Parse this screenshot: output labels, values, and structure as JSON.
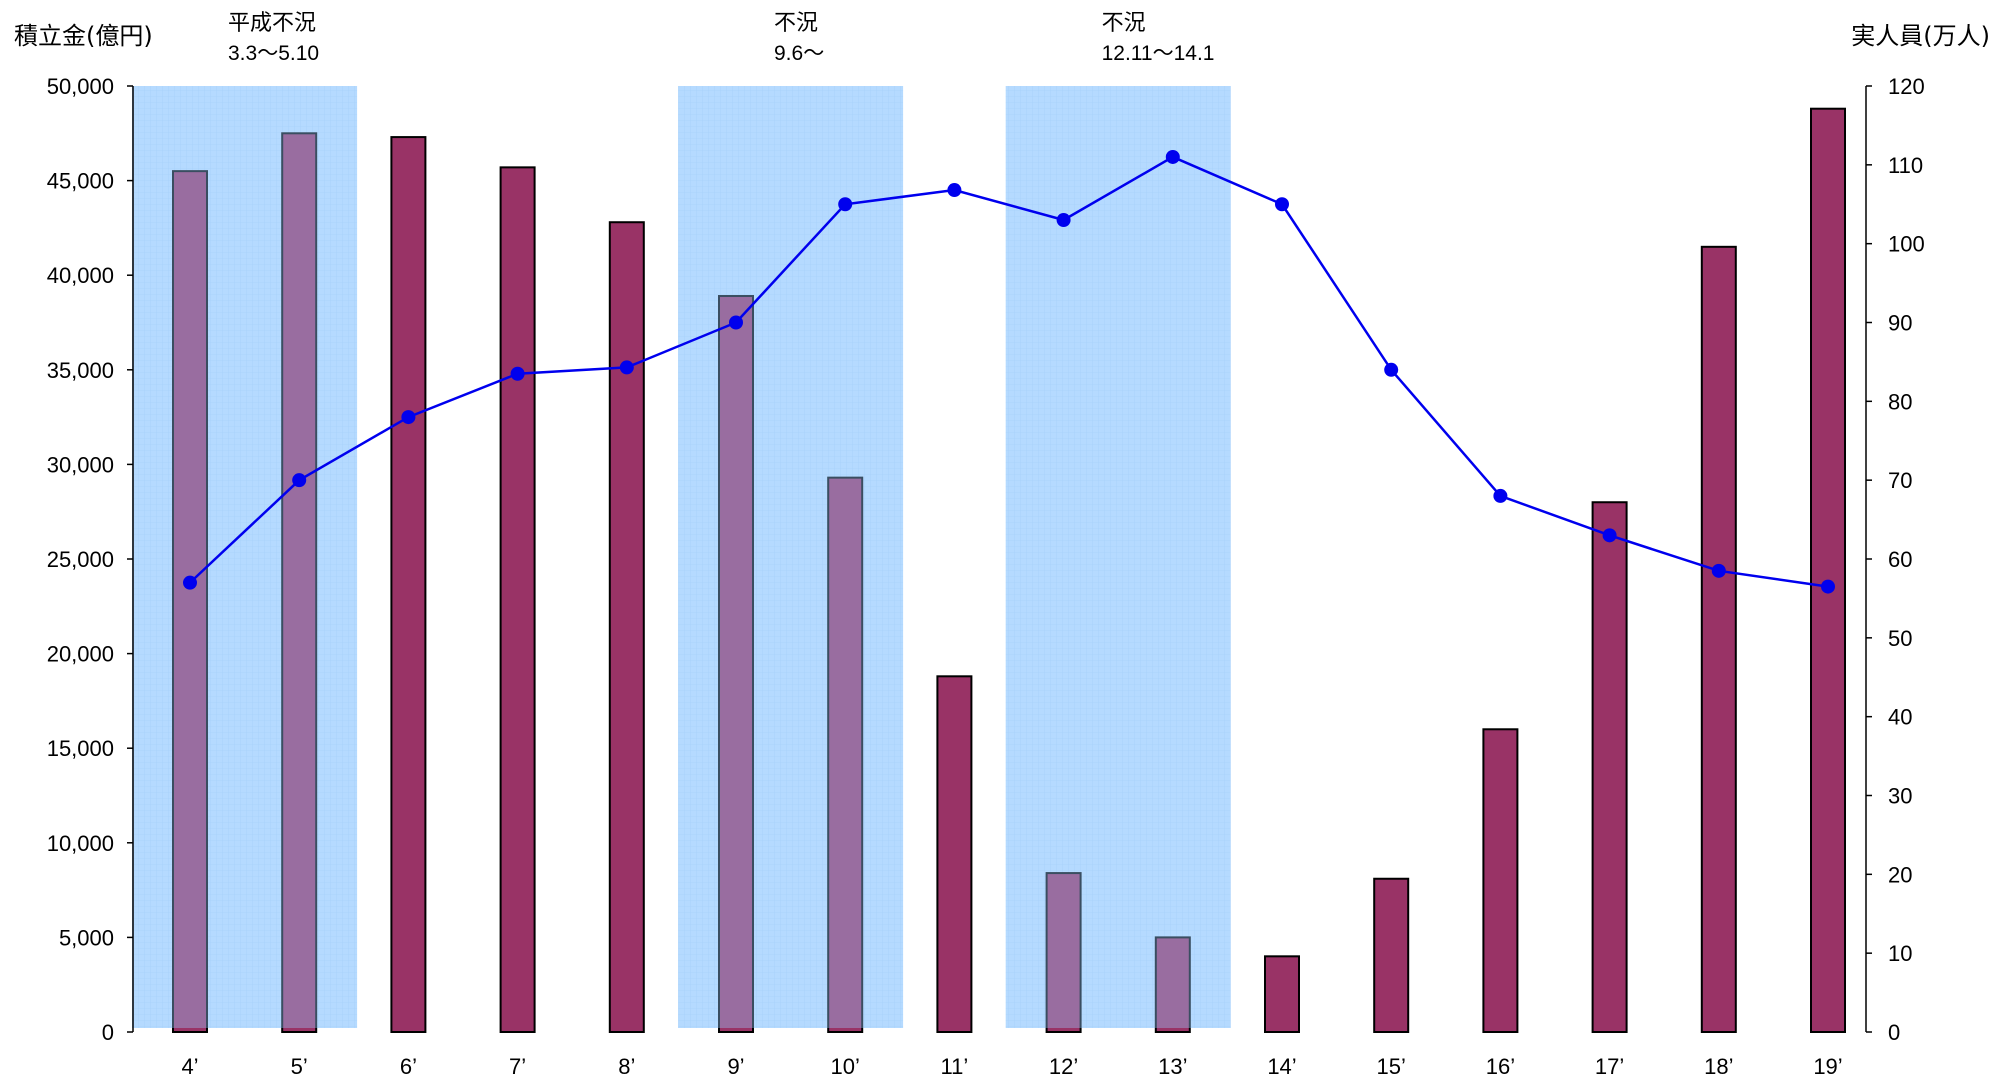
{
  "chart_data": {
    "type": "bar",
    "categories": [
      "4’",
      "5’",
      "6’",
      "7’",
      "8’",
      "9’",
      "10’",
      "11’",
      "12’",
      "13’",
      "14’",
      "15’",
      "16’",
      "17’",
      "18’",
      "19’"
    ],
    "series": [
      {
        "type": "bar",
        "axis": "left",
        "color": "#993366",
        "values": [
          45500,
          47500,
          47300,
          45700,
          42800,
          38900,
          29300,
          18800,
          8400,
          5000,
          4000,
          8100,
          16000,
          28000,
          41500,
          48800
        ]
      },
      {
        "type": "line",
        "axis": "right",
        "color": "#0000ee",
        "values": [
          57,
          70,
          78,
          83.5,
          84.3,
          90,
          105,
          106.8,
          103,
          111,
          105,
          84,
          68,
          63,
          58.5,
          56.5
        ]
      }
    ],
    "y_left": {
      "label": "積立金(億円)",
      "ylim": [
        0,
        50000
      ],
      "ticks": [
        "0",
        "5,000",
        "10,000",
        "15,000",
        "20,000",
        "25,000",
        "30,000",
        "35,000",
        "40,000",
        "45,000",
        "50,000"
      ]
    },
    "y_right": {
      "label": "実人員(万人)",
      "ylim": [
        0,
        120
      ],
      "ticks": [
        "0",
        "10",
        "20",
        "30",
        "40",
        "50",
        "60",
        "70",
        "80",
        "90",
        "100",
        "110",
        "120"
      ]
    },
    "recessions": [
      {
        "label": "平成不況",
        "period": "3.3〜5.10",
        "from": "4’",
        "to": "5’"
      },
      {
        "label": "不況",
        "period": "9.6〜",
        "from": "9’",
        "to": "10’"
      },
      {
        "label": "不況",
        "period": "12.11〜14.1",
        "from": "12’",
        "to": "13’"
      }
    ],
    "shade_color": "#99ccff",
    "grid": false,
    "legend": "none"
  }
}
